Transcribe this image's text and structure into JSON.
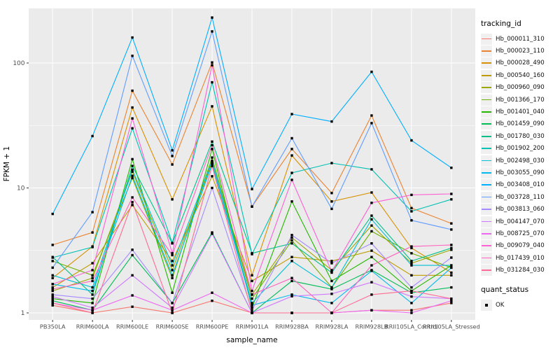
{
  "figure": {
    "kind": "ggplot-line-chart"
  },
  "legend": {
    "tracking_title": "tracking_id",
    "quant_title": "quant_status",
    "quant_items": [
      {
        "label": "OK"
      }
    ]
  },
  "chart_data": {
    "type": "line",
    "title": "",
    "x_label": "sample_name",
    "y_label": "FPKM + 1",
    "y_scale": "log10",
    "y_ticks": [
      1,
      10,
      100
    ],
    "y_minor_ticks": [
      3.162,
      31.62
    ],
    "ylim": [
      0.88,
      310
    ],
    "grid": true,
    "panel_bg": "#EBEBEB",
    "grid_color": "#FFFFFF",
    "tick_label_color": "#4D4D4D",
    "marker": {
      "shape": "square",
      "color": "#000000",
      "legend_label": "OK"
    },
    "legend_position": "right",
    "categories": [
      "PB350LA",
      "RRIM600LA",
      "RRIM600LE",
      "RRIM600SE",
      "RRIM600PE",
      "RRIM901LA",
      "RRIM928BA",
      "RRIM928LA",
      "RRIM928LB",
      "RRII105LA_Control",
      "RRII105LA_Stressed"
    ],
    "series": [
      {
        "name": "Hb_000011_310",
        "color": "#F8766D",
        "values": [
          1.15,
          1.0,
          1.12,
          1.0,
          1.25,
          1.0,
          1.0,
          1.0,
          1.05,
          1.05,
          1.2
        ]
      },
      {
        "name": "Hb_000023_110",
        "color": "#EA8331",
        "values": [
          3.5,
          4.4,
          60,
          15.4,
          101,
          7.1,
          20.5,
          9.1,
          38,
          6.9,
          5.2
        ]
      },
      {
        "name": "Hb_000028_490",
        "color": "#D89000",
        "values": [
          1.9,
          3.4,
          44,
          8.1,
          45,
          2.0,
          18.2,
          7.8,
          9.2,
          3.3,
          2.1
        ]
      },
      {
        "name": "Hb_000540_160",
        "color": "#BE9C00",
        "values": [
          1.6,
          2.5,
          7.3,
          2.6,
          12.4,
          1.8,
          2.8,
          2.6,
          3.15,
          2.0,
          2.0
        ]
      },
      {
        "name": "Hb_000960_090",
        "color": "#9CA700",
        "values": [
          1.5,
          1.9,
          13.5,
          2.2,
          16.0,
          1.4,
          4.0,
          2.2,
          5.0,
          2.5,
          3.2
        ]
      },
      {
        "name": "Hb_001366_170",
        "color": "#6FB000",
        "values": [
          2.6,
          2.0,
          12.0,
          1.9,
          17.5,
          1.3,
          3.8,
          1.6,
          4.5,
          3.0,
          2.3
        ]
      },
      {
        "name": "Hb_001401_040",
        "color": "#24B700",
        "values": [
          1.3,
          1.2,
          17.0,
          1.45,
          20.5,
          1.1,
          7.8,
          1.8,
          2.8,
          1.5,
          2.4
        ]
      },
      {
        "name": "Hb_001459_090",
        "color": "#00BC56",
        "values": [
          1.25,
          1.05,
          2.9,
          1.2,
          4.4,
          1.0,
          1.8,
          1.55,
          2.2,
          1.45,
          1.6
        ]
      },
      {
        "name": "Hb_001780_030",
        "color": "#00C089",
        "values": [
          2.8,
          1.4,
          15.0,
          3.6,
          23.5,
          3.0,
          3.6,
          2.1,
          6.0,
          2.6,
          3.3
        ]
      },
      {
        "name": "Hb_001902_200",
        "color": "#00C1B2",
        "values": [
          2.77,
          3.36,
          30,
          3.63,
          70,
          2.95,
          13.2,
          15.8,
          14.1,
          6.5,
          8.1
        ]
      },
      {
        "name": "Hb_002498_030",
        "color": "#00BFD4",
        "values": [
          2.0,
          1.6,
          14.0,
          2.4,
          16.5,
          1.2,
          2.6,
          1.6,
          5.6,
          2.4,
          2.4
        ]
      },
      {
        "name": "Hb_003055_090",
        "color": "#00BAEE",
        "values": [
          1.7,
          1.5,
          12.5,
          2.0,
          15.5,
          1.15,
          1.4,
          1.2,
          2.17,
          1.2,
          2.3
        ]
      },
      {
        "name": "Hb_003408_010",
        "color": "#00AFFF",
        "values": [
          6.2,
          26,
          160,
          20,
          231,
          9.8,
          39,
          34,
          85,
          24,
          14.5
        ]
      },
      {
        "name": "Hb_003728_110",
        "color": "#619CFF",
        "values": [
          2.3,
          6.4,
          114,
          18,
          179,
          7.1,
          25,
          6.8,
          33,
          5.5,
          4.65
        ]
      },
      {
        "name": "Hb_003813_060",
        "color": "#A58AFF",
        "values": [
          1.4,
          1.3,
          3.2,
          1.2,
          10.0,
          1.05,
          4.2,
          2.5,
          3.6,
          1.6,
          2.77
        ]
      },
      {
        "name": "Hb_004147_070",
        "color": "#CF78FF",
        "values": [
          1.35,
          1.1,
          2.0,
          1.1,
          4.3,
          1.0,
          1.36,
          1.42,
          1.76,
          1.35,
          1.3
        ]
      },
      {
        "name": "Hb_008725_070",
        "color": "#ED68F0",
        "values": [
          1.2,
          1.05,
          1.38,
          1.05,
          1.45,
          1.0,
          1.0,
          1.0,
          1.05,
          1.0,
          1.25
        ]
      },
      {
        "name": "Hb_009079_040",
        "color": "#FC61D5",
        "values": [
          1.7,
          2.2,
          36,
          3.0,
          96,
          1.5,
          11.6,
          2.14,
          7.6,
          8.8,
          8.96
        ]
      },
      {
        "name": "Hb_017439_010",
        "color": "#FF62BE",
        "values": [
          1.55,
          1.8,
          8.4,
          2.9,
          22,
          1.4,
          1.9,
          1.0,
          2.4,
          3.4,
          3.5
        ]
      },
      {
        "name": "Hb_031284_030",
        "color": "#FF6B94",
        "values": [
          1.2,
          1.0,
          7.7,
          1.0,
          15.0,
          1.0,
          1.0,
          1.0,
          1.4,
          1.5,
          1.3
        ]
      }
    ]
  }
}
